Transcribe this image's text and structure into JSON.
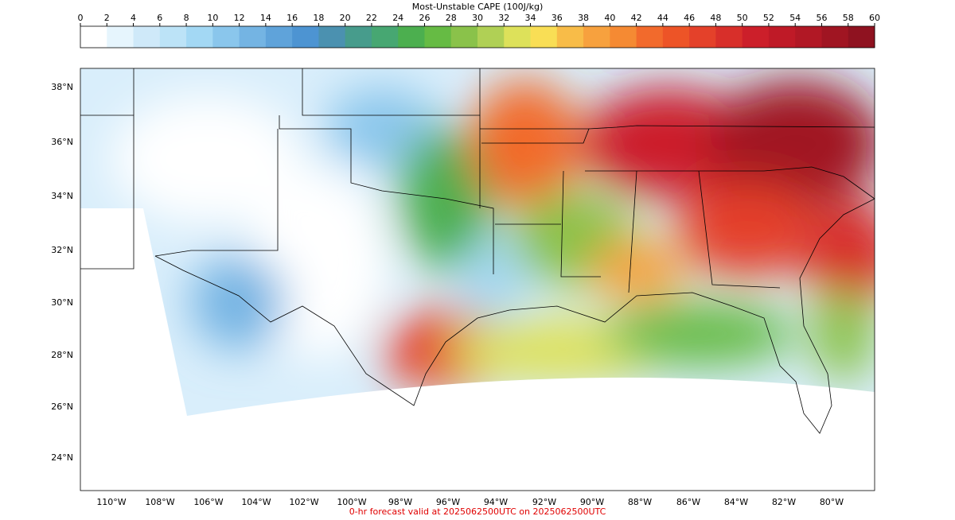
{
  "colorbar": {
    "title": "Most-Unstable CAPE (100J/kg)",
    "ticks": [
      "0",
      "2",
      "4",
      "6",
      "8",
      "10",
      "12",
      "14",
      "16",
      "18",
      "20",
      "22",
      "24",
      "26",
      "28",
      "30",
      "32",
      "34",
      "36",
      "38",
      "40",
      "42",
      "44",
      "46",
      "48",
      "50",
      "52",
      "54",
      "56",
      "58",
      "60"
    ],
    "colors": [
      "#ffffff",
      "#e6f5fd",
      "#cfe9f9",
      "#bce3f7",
      "#a3d8f4",
      "#8ac6ec",
      "#74b4e3",
      "#5fa3da",
      "#4d94d2",
      "#4b91b0",
      "#479c8c",
      "#47a772",
      "#4caf4f",
      "#66bb44",
      "#8ac24a",
      "#b0d055",
      "#dde15a",
      "#f9de55",
      "#f8bc48",
      "#f7a13e",
      "#f58a33",
      "#f26a2c",
      "#ed5427",
      "#e4412a",
      "#d82f2a",
      "#cc1f2a",
      "#bf1a27",
      "#b11825",
      "#a01522",
      "#8f1220"
    ]
  },
  "map": {
    "lat_labels": [
      "38°N",
      "36°N",
      "34°N",
      "32°N",
      "30°N",
      "28°N",
      "26°N",
      "24°N"
    ],
    "lon_labels": [
      "110°W",
      "108°W",
      "106°W",
      "104°W",
      "102°W",
      "100°W",
      "98°W",
      "96°W",
      "94°W",
      "92°W",
      "90°W",
      "88°W",
      "86°W",
      "84°W",
      "82°W",
      "80°W"
    ]
  },
  "footer": "0-hr forecast valid at 2025062500UTC on 2025062500UTC"
}
